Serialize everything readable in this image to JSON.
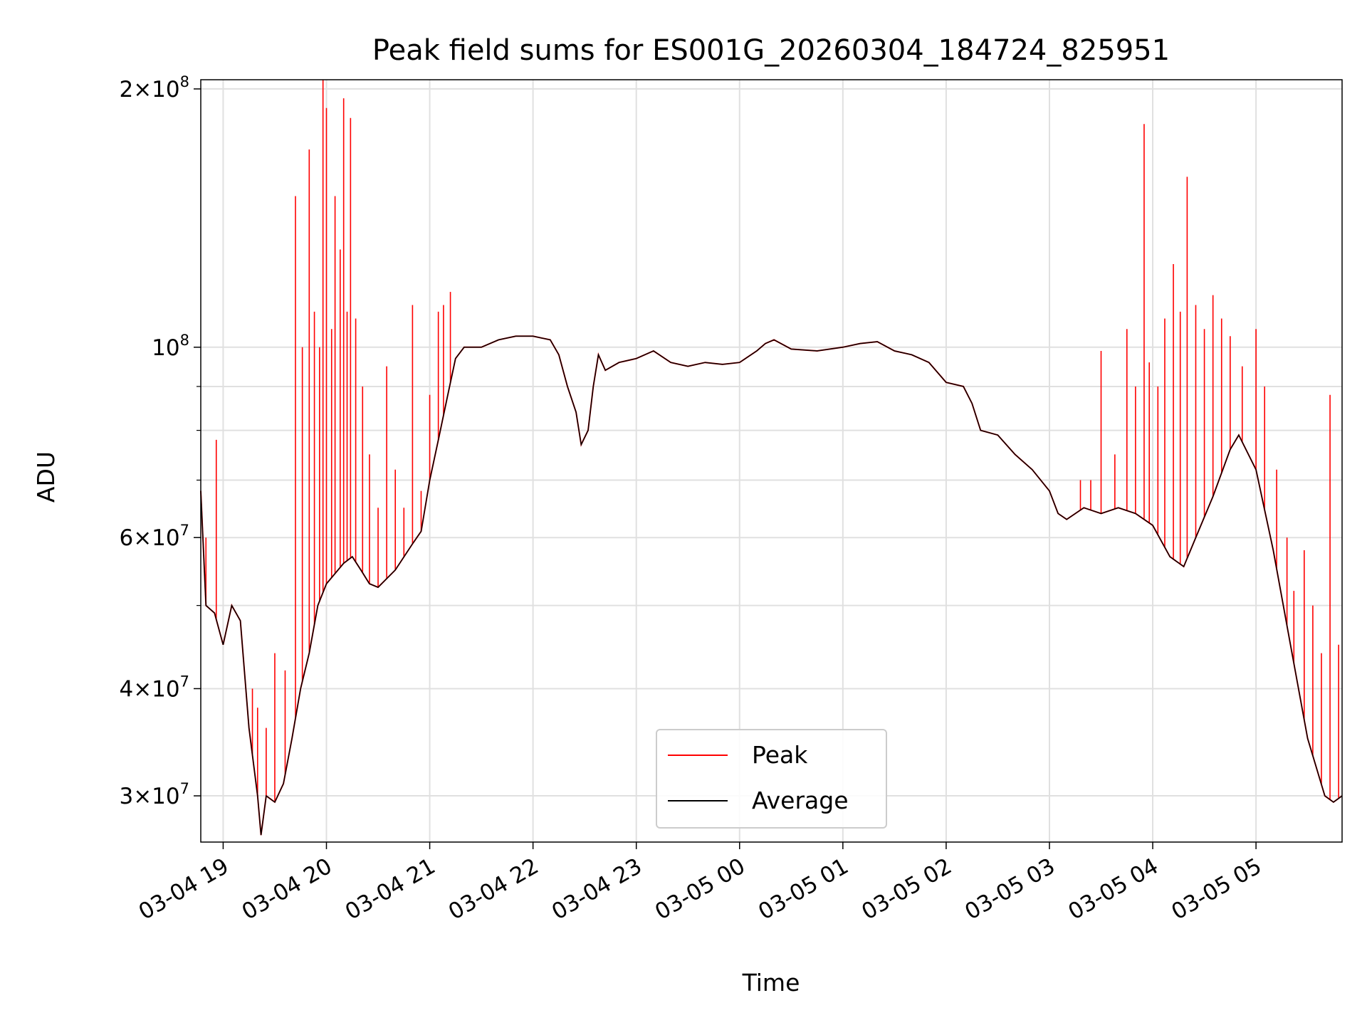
{
  "chart_data": {
    "type": "line",
    "title": "Peak field sums for ES001G_20260304_184724_825951",
    "xlabel": "Time",
    "ylabel": "ADU",
    "yscale": "log",
    "ylim": [
      26500000,
      205000000
    ],
    "xlim": [
      "2026-03-04 18:47",
      "2026-03-05 05:50"
    ],
    "grid": true,
    "legend": "lower center",
    "x_ticks": [
      {
        "t": "2026-03-04 19:00",
        "label": "03-04 19"
      },
      {
        "t": "2026-03-04 20:00",
        "label": "03-04 20"
      },
      {
        "t": "2026-03-04 21:00",
        "label": "03-04 21"
      },
      {
        "t": "2026-03-04 22:00",
        "label": "03-04 22"
      },
      {
        "t": "2026-03-04 23:00",
        "label": "03-04 23"
      },
      {
        "t": "2026-03-05 00:00",
        "label": "03-05 00"
      },
      {
        "t": "2026-03-05 01:00",
        "label": "03-05 01"
      },
      {
        "t": "2026-03-05 02:00",
        "label": "03-05 02"
      },
      {
        "t": "2026-03-05 03:00",
        "label": "03-05 03"
      },
      {
        "t": "2026-03-05 04:00",
        "label": "03-05 04"
      },
      {
        "t": "2026-03-05 05:00",
        "label": "03-05 05"
      }
    ],
    "y_ticks_major": [
      {
        "v": 30000000,
        "mant": "3",
        "exp": "7"
      },
      {
        "v": 40000000,
        "mant": "4",
        "exp": "7"
      },
      {
        "v": 60000000,
        "mant": "6",
        "exp": "7"
      },
      {
        "v": 100000000,
        "mant": "",
        "exp": "8"
      },
      {
        "v": 200000000,
        "mant": "2",
        "exp": "8"
      }
    ],
    "y_ticks_minor": [
      50000000,
      70000000,
      80000000,
      90000000
    ],
    "series": [
      {
        "name": "Average",
        "color": "#000000",
        "points": [
          [
            "2026-03-04 18:47",
            68000000
          ],
          [
            "2026-03-04 18:50",
            50000000
          ],
          [
            "2026-03-04 18:55",
            49000000
          ],
          [
            "2026-03-04 19:00",
            45000000
          ],
          [
            "2026-03-04 19:05",
            50000000
          ],
          [
            "2026-03-04 19:10",
            48000000
          ],
          [
            "2026-03-04 19:15",
            36000000
          ],
          [
            "2026-03-04 19:20",
            30000000
          ],
          [
            "2026-03-04 19:22",
            27000000
          ],
          [
            "2026-03-04 19:25",
            30000000
          ],
          [
            "2026-03-04 19:30",
            29500000
          ],
          [
            "2026-03-04 19:35",
            31000000
          ],
          [
            "2026-03-04 19:40",
            35000000
          ],
          [
            "2026-03-04 19:45",
            40000000
          ],
          [
            "2026-03-04 19:50",
            44000000
          ],
          [
            "2026-03-04 19:55",
            50000000
          ],
          [
            "2026-03-04 20:00",
            53000000
          ],
          [
            "2026-03-04 20:10",
            56000000
          ],
          [
            "2026-03-04 20:15",
            57000000
          ],
          [
            "2026-03-04 20:20",
            55000000
          ],
          [
            "2026-03-04 20:25",
            53000000
          ],
          [
            "2026-03-04 20:30",
            52500000
          ],
          [
            "2026-03-04 20:40",
            55000000
          ],
          [
            "2026-03-04 20:50",
            59000000
          ],
          [
            "2026-03-04 20:55",
            61000000
          ],
          [
            "2026-03-04 21:00",
            70000000
          ],
          [
            "2026-03-04 21:05",
            78000000
          ],
          [
            "2026-03-04 21:10",
            87000000
          ],
          [
            "2026-03-04 21:15",
            97000000
          ],
          [
            "2026-03-04 21:20",
            100000000
          ],
          [
            "2026-03-04 21:30",
            100000000
          ],
          [
            "2026-03-04 21:40",
            102000000
          ],
          [
            "2026-03-04 21:50",
            103000000
          ],
          [
            "2026-03-04 22:00",
            103000000
          ],
          [
            "2026-03-04 22:10",
            102000000
          ],
          [
            "2026-03-04 22:15",
            98000000
          ],
          [
            "2026-03-04 22:20",
            90000000
          ],
          [
            "2026-03-04 22:25",
            84000000
          ],
          [
            "2026-03-04 22:28",
            77000000
          ],
          [
            "2026-03-04 22:32",
            80000000
          ],
          [
            "2026-03-04 22:35",
            90000000
          ],
          [
            "2026-03-04 22:38",
            98000000
          ],
          [
            "2026-03-04 22:42",
            94000000
          ],
          [
            "2026-03-04 22:50",
            96000000
          ],
          [
            "2026-03-04 23:00",
            97000000
          ],
          [
            "2026-03-04 23:10",
            99000000
          ],
          [
            "2026-03-04 23:20",
            96000000
          ],
          [
            "2026-03-04 23:30",
            95000000
          ],
          [
            "2026-03-04 23:40",
            96000000
          ],
          [
            "2026-03-04 23:50",
            95500000
          ],
          [
            "2026-03-05 00:00",
            96000000
          ],
          [
            "2026-03-05 00:10",
            99000000
          ],
          [
            "2026-03-05 00:15",
            101000000
          ],
          [
            "2026-03-05 00:20",
            102000000
          ],
          [
            "2026-03-05 00:30",
            99500000
          ],
          [
            "2026-03-05 00:45",
            99000000
          ],
          [
            "2026-03-05 01:00",
            100000000
          ],
          [
            "2026-03-05 01:10",
            101000000
          ],
          [
            "2026-03-05 01:20",
            101500000
          ],
          [
            "2026-03-05 01:30",
            99000000
          ],
          [
            "2026-03-05 01:40",
            98000000
          ],
          [
            "2026-03-05 01:50",
            96000000
          ],
          [
            "2026-03-05 02:00",
            91000000
          ],
          [
            "2026-03-05 02:10",
            90000000
          ],
          [
            "2026-03-05 02:15",
            86000000
          ],
          [
            "2026-03-05 02:20",
            80000000
          ],
          [
            "2026-03-05 02:30",
            79000000
          ],
          [
            "2026-03-05 02:40",
            75000000
          ],
          [
            "2026-03-05 02:50",
            72000000
          ],
          [
            "2026-03-05 03:00",
            68000000
          ],
          [
            "2026-03-05 03:05",
            64000000
          ],
          [
            "2026-03-05 03:10",
            63000000
          ],
          [
            "2026-03-05 03:20",
            65000000
          ],
          [
            "2026-03-05 03:30",
            64000000
          ],
          [
            "2026-03-05 03:40",
            65000000
          ],
          [
            "2026-03-05 03:50",
            64000000
          ],
          [
            "2026-03-05 04:00",
            62000000
          ],
          [
            "2026-03-05 04:10",
            57000000
          ],
          [
            "2026-03-05 04:18",
            55500000
          ],
          [
            "2026-03-05 04:25",
            60000000
          ],
          [
            "2026-03-05 04:35",
            67000000
          ],
          [
            "2026-03-05 04:45",
            76000000
          ],
          [
            "2026-03-05 04:50",
            79000000
          ],
          [
            "2026-03-05 05:00",
            72000000
          ],
          [
            "2026-03-05 05:10",
            58000000
          ],
          [
            "2026-03-05 05:20",
            45000000
          ],
          [
            "2026-03-05 05:30",
            35000000
          ],
          [
            "2026-03-05 05:40",
            30000000
          ],
          [
            "2026-03-05 05:45",
            29500000
          ],
          [
            "2026-03-05 05:50",
            30000000
          ]
        ]
      },
      {
        "name": "Peak",
        "color": "#ff0000",
        "spikes": [
          [
            "2026-03-04 18:50",
            60000000
          ],
          [
            "2026-03-04 18:56",
            78000000
          ],
          [
            "2026-03-04 19:17",
            40000000
          ],
          [
            "2026-03-04 19:20",
            38000000
          ],
          [
            "2026-03-04 19:25",
            36000000
          ],
          [
            "2026-03-04 19:30",
            44000000
          ],
          [
            "2026-03-04 19:36",
            42000000
          ],
          [
            "2026-03-04 19:42",
            150000000
          ],
          [
            "2026-03-04 19:46",
            100000000
          ],
          [
            "2026-03-04 19:50",
            170000000
          ],
          [
            "2026-03-04 19:53",
            110000000
          ],
          [
            "2026-03-04 19:56",
            100000000
          ],
          [
            "2026-03-04 19:58",
            205000000
          ],
          [
            "2026-03-04 20:00",
            190000000
          ],
          [
            "2026-03-04 20:03",
            105000000
          ],
          [
            "2026-03-04 20:05",
            150000000
          ],
          [
            "2026-03-04 20:08",
            130000000
          ],
          [
            "2026-03-04 20:10",
            195000000
          ],
          [
            "2026-03-04 20:12",
            110000000
          ],
          [
            "2026-03-04 20:14",
            185000000
          ],
          [
            "2026-03-04 20:17",
            108000000
          ],
          [
            "2026-03-04 20:21",
            90000000
          ],
          [
            "2026-03-04 20:25",
            75000000
          ],
          [
            "2026-03-04 20:30",
            65000000
          ],
          [
            "2026-03-04 20:35",
            95000000
          ],
          [
            "2026-03-04 20:40",
            72000000
          ],
          [
            "2026-03-04 20:45",
            65000000
          ],
          [
            "2026-03-04 20:50",
            112000000
          ],
          [
            "2026-03-04 20:55",
            68000000
          ],
          [
            "2026-03-04 21:00",
            88000000
          ],
          [
            "2026-03-04 21:05",
            110000000
          ],
          [
            "2026-03-04 21:08",
            112000000
          ],
          [
            "2026-03-04 21:12",
            116000000
          ],
          [
            "2026-03-05 03:18",
            70000000
          ],
          [
            "2026-03-05 03:24",
            70000000
          ],
          [
            "2026-03-05 03:30",
            99000000
          ],
          [
            "2026-03-05 03:38",
            75000000
          ],
          [
            "2026-03-05 03:45",
            105000000
          ],
          [
            "2026-03-05 03:50",
            90000000
          ],
          [
            "2026-03-05 03:55",
            182000000
          ],
          [
            "2026-03-05 03:58",
            96000000
          ],
          [
            "2026-03-05 04:03",
            90000000
          ],
          [
            "2026-03-05 04:07",
            108000000
          ],
          [
            "2026-03-05 04:12",
            125000000
          ],
          [
            "2026-03-05 04:16",
            110000000
          ],
          [
            "2026-03-05 04:20",
            158000000
          ],
          [
            "2026-03-05 04:25",
            112000000
          ],
          [
            "2026-03-05 04:30",
            105000000
          ],
          [
            "2026-03-05 04:35",
            115000000
          ],
          [
            "2026-03-05 04:40",
            108000000
          ],
          [
            "2026-03-05 04:45",
            103000000
          ],
          [
            "2026-03-05 04:52",
            95000000
          ],
          [
            "2026-03-05 05:00",
            105000000
          ],
          [
            "2026-03-05 05:05",
            90000000
          ],
          [
            "2026-03-05 05:12",
            72000000
          ],
          [
            "2026-03-05 05:18",
            60000000
          ],
          [
            "2026-03-05 05:22",
            52000000
          ],
          [
            "2026-03-05 05:28",
            58000000
          ],
          [
            "2026-03-05 05:33",
            50000000
          ],
          [
            "2026-03-05 05:38",
            44000000
          ],
          [
            "2026-03-05 05:43",
            88000000
          ],
          [
            "2026-03-05 05:48",
            45000000
          ]
        ]
      }
    ]
  }
}
